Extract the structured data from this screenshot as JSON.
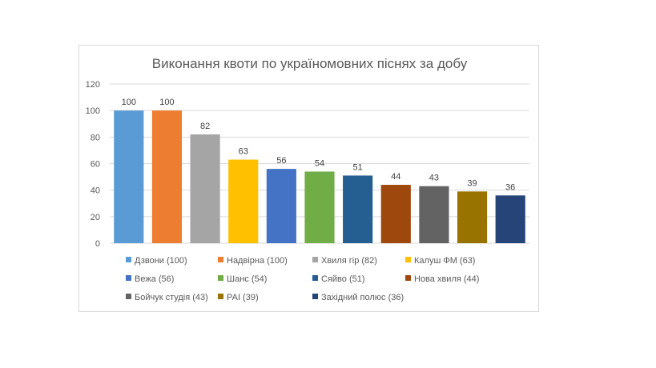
{
  "chart_data": {
    "type": "bar",
    "title": "Виконання квоти по україномовних піснях за добу",
    "categories": [
      "Дзвони",
      "Надвірна",
      "Хвиля гір",
      "Калуш ФМ",
      "Вежа",
      "Шанс",
      "Сяйво",
      "Нова хвиля",
      "Бойчук студія",
      "РАІ",
      "Західний полюс"
    ],
    "values": [
      100,
      100,
      82,
      63,
      56,
      54,
      51,
      44,
      43,
      39,
      36
    ],
    "colors": [
      "#5b9bd5",
      "#ed7d31",
      "#a5a5a5",
      "#ffc000",
      "#4472c4",
      "#70ad47",
      "#255e91",
      "#9e480e",
      "#636363",
      "#997300",
      "#264478"
    ],
    "legend": [
      "Дзвони (100)",
      "Надвірна (100)",
      "Хвиля гір (82)",
      "Калуш ФМ (63)",
      "Вежа (56)",
      "Шанс (54)",
      "Сяйво (51)",
      "Нова хвиля (44)",
      "Бойчук студія (43)",
      "РАІ (39)",
      "Західний полюс (36)"
    ],
    "y_ticks": [
      0,
      20,
      40,
      60,
      80,
      100,
      120
    ],
    "ylim": [
      0,
      120
    ],
    "grid": true,
    "legend_position": "bottom"
  }
}
